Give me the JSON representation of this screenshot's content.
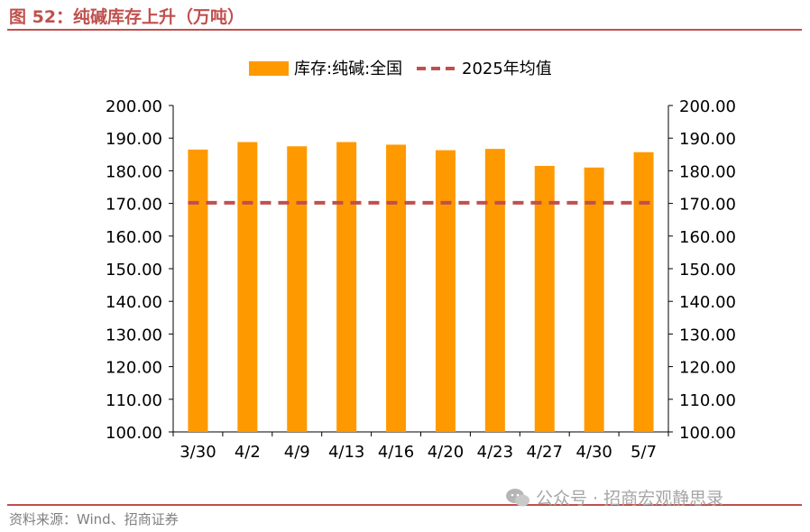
{
  "figure": {
    "title": "图 52：纯碱库存上升（万吨）",
    "source": "资料来源：Wind、招商证券",
    "watermark": "公众号 · 招商宏观静思录",
    "watermark_icon": "wechat-icon"
  },
  "chart_data": {
    "type": "bar",
    "categories": [
      "3/30",
      "4/2",
      "4/9",
      "4/13",
      "4/16",
      "4/20",
      "4/23",
      "4/27",
      "4/30",
      "5/7"
    ],
    "series": [
      {
        "name": "库存:纯碱:全国",
        "type": "bar",
        "color": "#ff9900",
        "values": [
          186.5,
          188.8,
          187.5,
          188.8,
          188.0,
          186.3,
          186.7,
          181.5,
          181.0,
          185.7
        ]
      },
      {
        "name": "2025年均值",
        "type": "line",
        "style": "dashed",
        "color": "#c0504d",
        "values": [
          170.2,
          170.2,
          170.2,
          170.2,
          170.2,
          170.2,
          170.2,
          170.2,
          170.2,
          170.2
        ]
      }
    ],
    "ylim": [
      100,
      200
    ],
    "yticks": [
      "100.00",
      "110.00",
      "120.00",
      "130.00",
      "140.00",
      "150.00",
      "160.00",
      "170.00",
      "180.00",
      "190.00",
      "200.00"
    ],
    "y_axes": "left-and-right",
    "grid": false,
    "legend": "top-center"
  }
}
